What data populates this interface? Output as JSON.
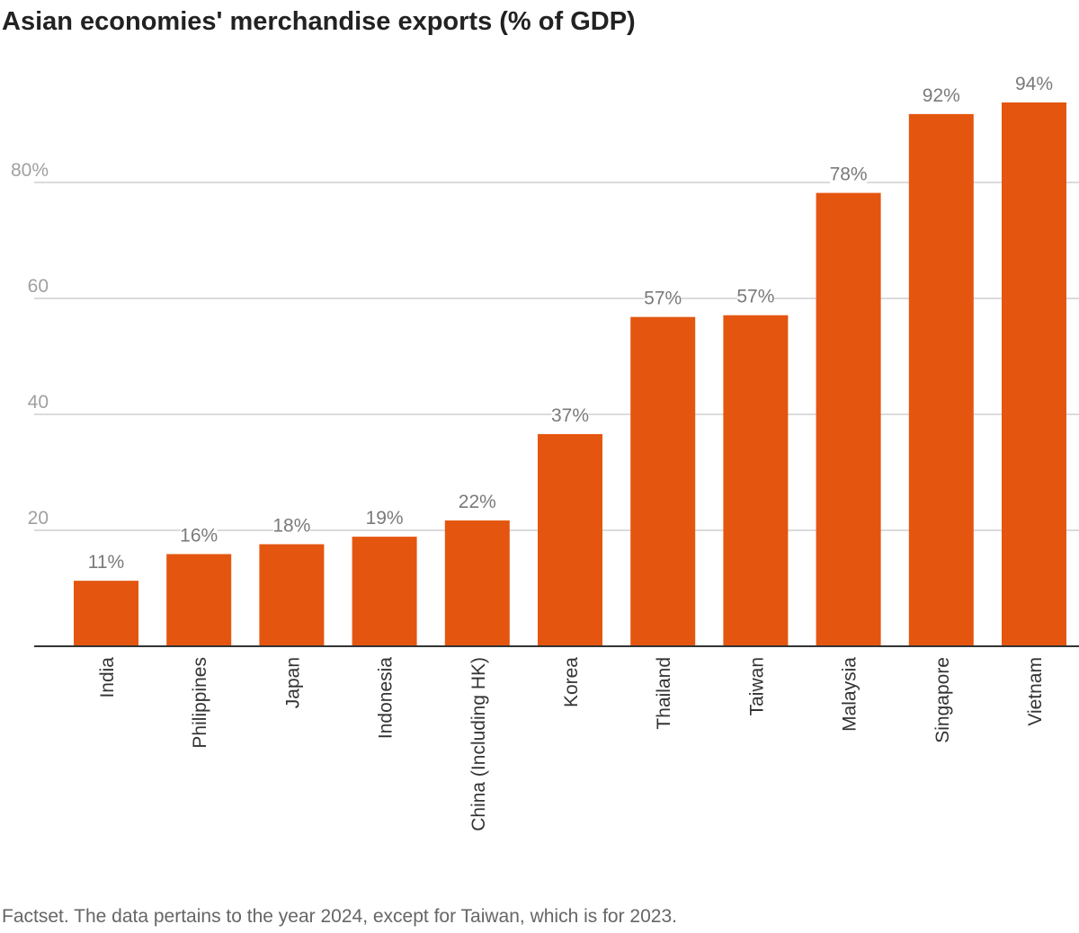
{
  "chart_data": {
    "type": "bar",
    "title": "Asian economies' merchandise exports (% of GDP)",
    "categories": [
      "India",
      "Philippines",
      "Japan",
      "Indonesia",
      "China (Including HK)",
      "Korea",
      "Thailand",
      "Taiwan",
      "Malaysia",
      "Singapore",
      "Vietnam"
    ],
    "values": [
      11.3,
      15.9,
      17.6,
      18.9,
      21.7,
      36.6,
      56.8,
      57.1,
      78.2,
      91.8,
      93.8
    ],
    "data_labels": [
      "11%",
      "16%",
      "18%",
      "19%",
      "22%",
      "37%",
      "57%",
      "57%",
      "78%",
      "92%",
      "94%"
    ],
    "yticks": [
      20,
      40,
      60,
      80
    ],
    "ytick_labels": [
      "20",
      "40",
      "60",
      "80%"
    ],
    "ylim": [
      0,
      100
    ],
    "grid": true,
    "bar_color": "#e4560f",
    "source": "Factset. The data pertains to the year 2024, except for Taiwan, which is for 2023."
  }
}
